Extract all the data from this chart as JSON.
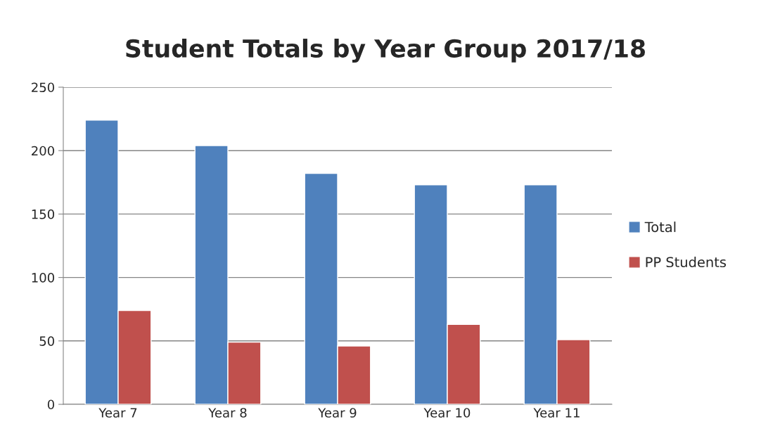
{
  "chart_data": {
    "type": "bar",
    "title": "Student Totals by Year Group 2017/18",
    "categories": [
      "Year 7",
      "Year 8",
      "Year 9",
      "Year 10",
      "Year 11"
    ],
    "series": [
      {
        "name": "Total",
        "color": "#4f81bd",
        "values": [
          224,
          204,
          182,
          173,
          173
        ]
      },
      {
        "name": "PP Students",
        "color": "#c0504d",
        "values": [
          74,
          49,
          46,
          63,
          51
        ]
      }
    ],
    "ylim": [
      0,
      250
    ],
    "yticks": [
      0,
      50,
      100,
      150,
      200,
      250
    ],
    "grid": "y",
    "legend": "right"
  }
}
